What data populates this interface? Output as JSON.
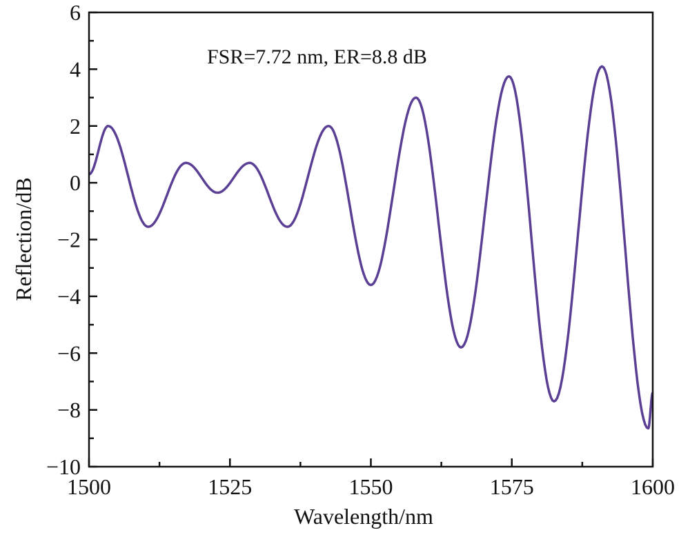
{
  "chart_data": {
    "type": "line",
    "title": "",
    "xlabel": "Wavelength/nm",
    "ylabel": "Reflection/dB",
    "xlim": [
      1500,
      1600
    ],
    "ylim": [
      -10,
      6
    ],
    "xticks": [
      1500,
      1525,
      1550,
      1575,
      1600
    ],
    "yticks": [
      -10,
      -8,
      -6,
      -4,
      -2,
      0,
      2,
      4,
      6
    ],
    "tick_labels_x": [
      "1500",
      "1525",
      "1550",
      "1575",
      "1600"
    ],
    "tick_labels_y": [
      "−10",
      "−8",
      "−6",
      "−4",
      "−2",
      "0",
      "2",
      "4",
      "6"
    ],
    "grid": false,
    "annotation": "FSR=7.72 nm, ER=8.8 dB",
    "series": [
      {
        "name": "Reflection",
        "color": "#5b3f94",
        "note": "local extrema of the spectrum; smooth interpolation between them",
        "x": [
          1500,
          1503.4,
          1510.5,
          1517.2,
          1522.8,
          1528.5,
          1535.2,
          1542.5,
          1550.0,
          1558.0,
          1566.0,
          1574.5,
          1582.5,
          1591.0,
          1599.2,
          1600
        ],
        "y": [
          0.3,
          2.0,
          -1.55,
          0.7,
          -0.35,
          0.7,
          -1.55,
          2.0,
          -3.6,
          3.0,
          -5.8,
          3.75,
          -7.7,
          4.1,
          -8.65,
          -7.4
        ]
      }
    ]
  }
}
